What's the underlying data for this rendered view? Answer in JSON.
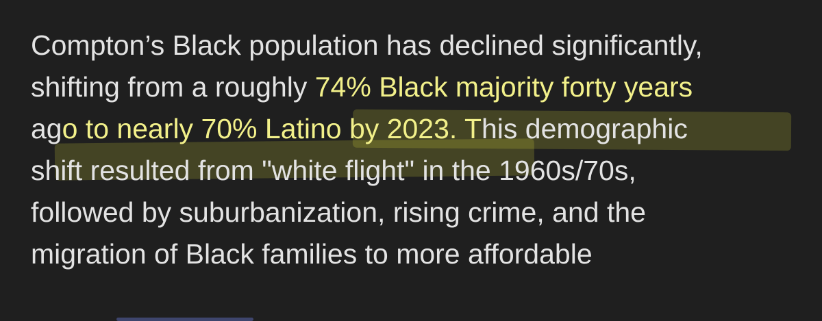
{
  "paragraph": {
    "line1": "Compton’s Black population has declined significantly,",
    "line2_pre": "shifting from a roughly ",
    "line2_hl": "74% Black majority forty years",
    "line3_pre": "ag",
    "line3_hl": "o to nearly 70% Latino by 2023. T",
    "line3_post": "his demographic",
    "line4": "shift resulted from \"white flight\" in the 1960s/70s,",
    "line5": "followed by suburbanization, rising crime, and the",
    "line6": "migration of Black families to more affordable"
  },
  "colors": {
    "background": "#1f1f1f",
    "text": "#e3e3e3",
    "highlight_text": "#f2f08a",
    "highlight_marker": "#ecec3c"
  }
}
